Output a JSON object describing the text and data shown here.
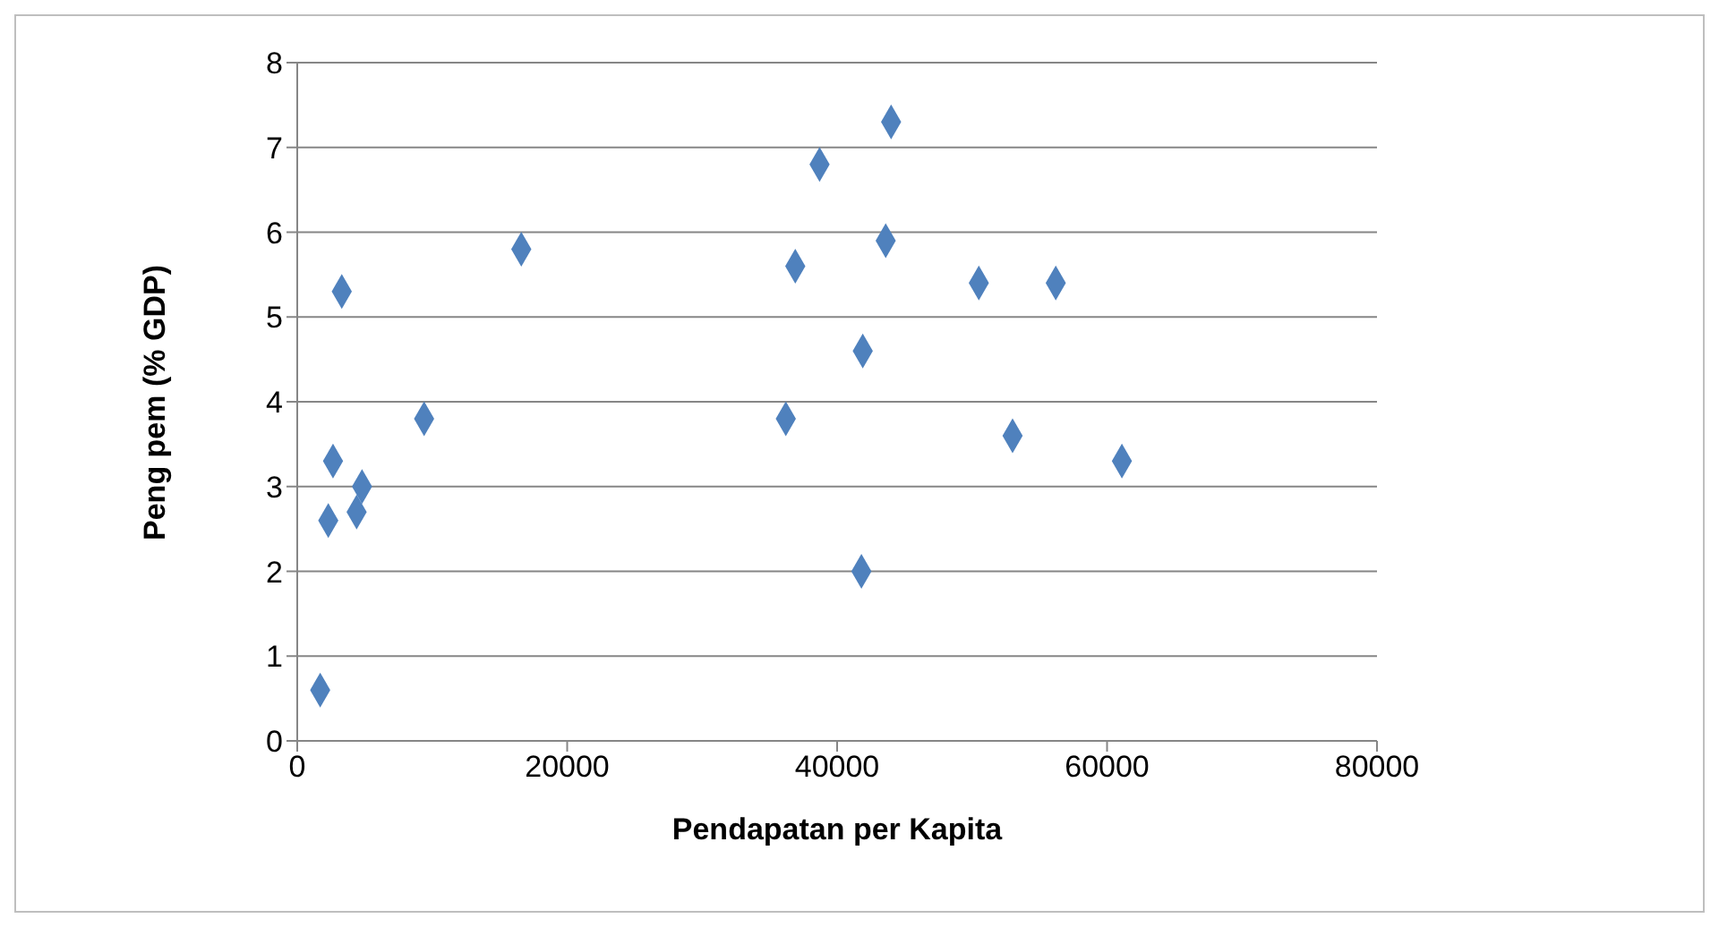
{
  "chart_data": {
    "type": "scatter",
    "xlabel": "Pendapatan per Kapita",
    "ylabel": "Peng pem (% GDP)",
    "x": [
      1700,
      2300,
      2650,
      3300,
      4400,
      4800,
      9400,
      16600,
      36200,
      36900,
      38700,
      41800,
      41900,
      43600,
      44000,
      50500,
      53000,
      56200,
      61100
    ],
    "series": [
      {
        "color": "#4f81bd",
        "values": [
          0.6,
          2.6,
          3.3,
          5.3,
          2.7,
          3.0,
          3.8,
          5.8,
          3.8,
          5.6,
          6.8,
          2.0,
          4.6,
          5.9,
          7.3,
          5.4,
          3.6,
          5.4,
          3.3
        ]
      }
    ],
    "xlim": [
      0,
      80000
    ],
    "xticks": [
      0,
      20000,
      40000,
      60000,
      80000
    ],
    "ylim": [
      0,
      8
    ],
    "yticks": [
      0,
      1,
      2,
      3,
      4,
      5,
      6,
      7,
      8
    ],
    "grid": "y",
    "marker": "diamond"
  }
}
